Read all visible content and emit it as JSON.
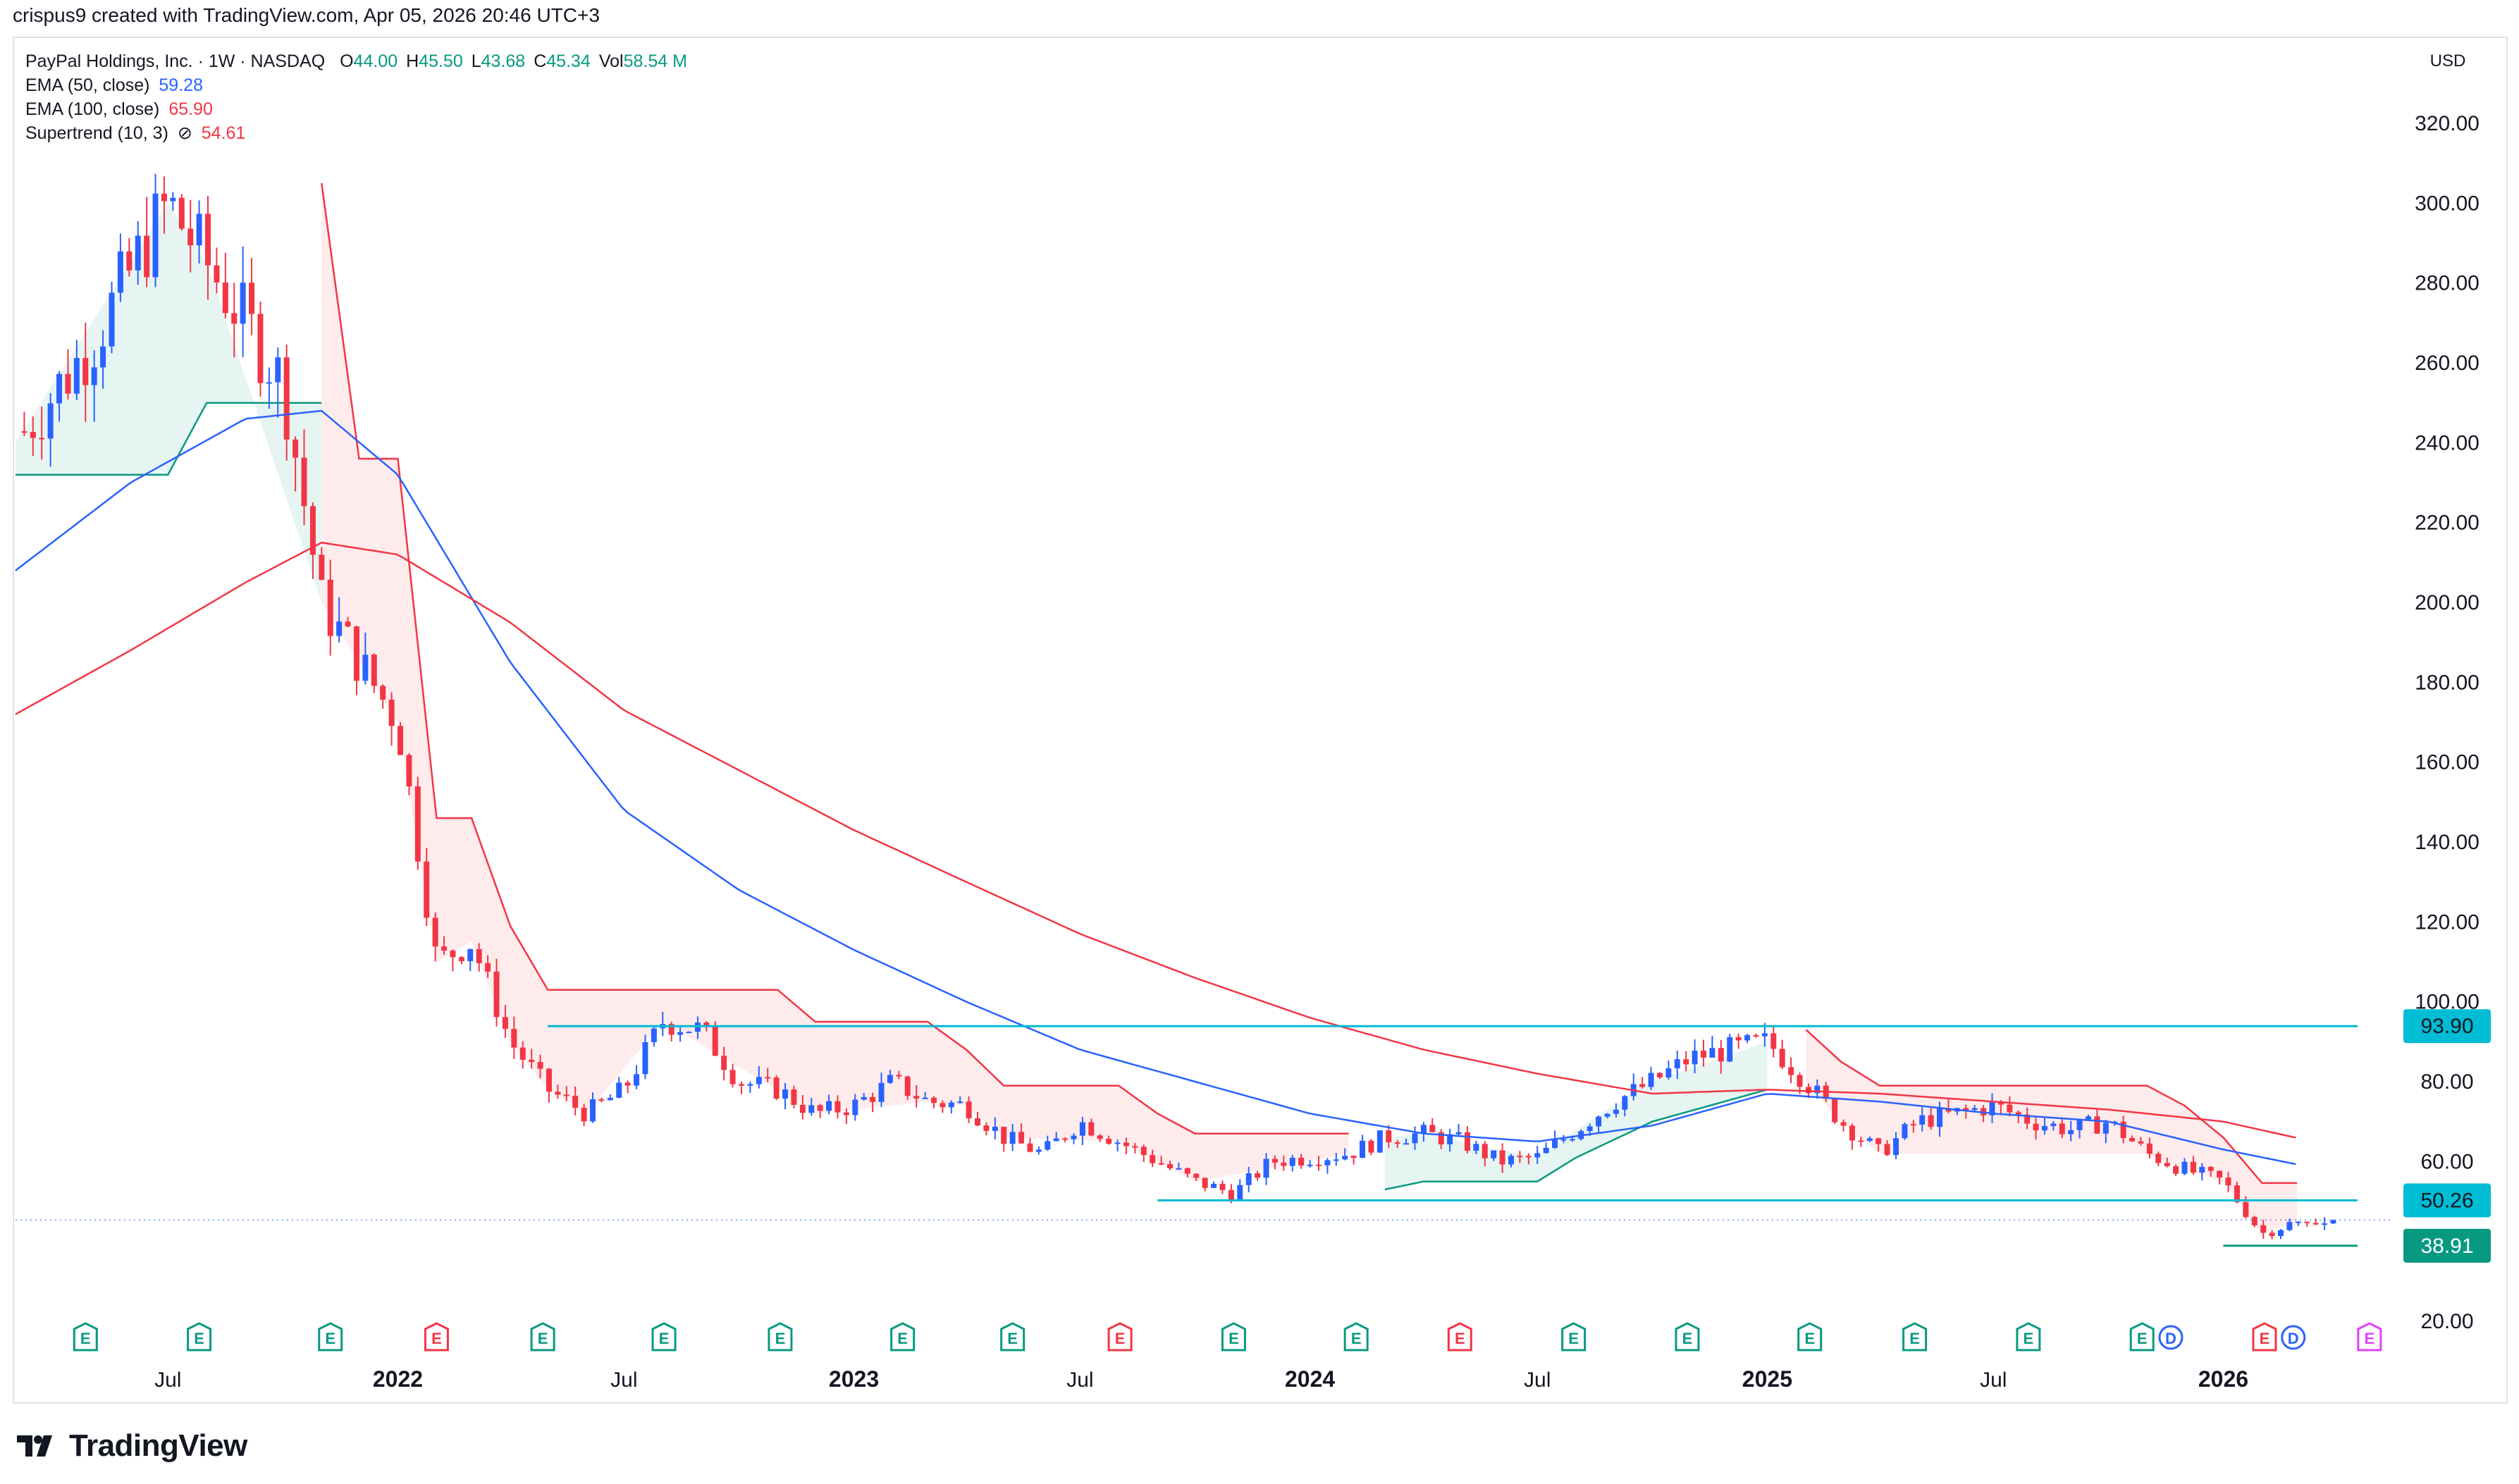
{
  "header": {
    "text": "crispus9 created with TradingView.com, Apr 05, 2026 20:46 UTC+3"
  },
  "legend": {
    "symbol": "PayPal Holdings, Inc. · 1W · NASDAQ",
    "ohlcv": [
      {
        "k": "O",
        "v": "44.00"
      },
      {
        "k": "H",
        "v": "45.50"
      },
      {
        "k": "L",
        "v": "43.68"
      },
      {
        "k": "C",
        "v": "45.34"
      },
      {
        "k": "Vol",
        "v": "58.54 M"
      }
    ],
    "ema50": {
      "label": "EMA (50, close)",
      "value": "59.28",
      "color": "#2962ff"
    },
    "ema100": {
      "label": "EMA (100, close)",
      "value": "65.90",
      "color": "#f23645"
    },
    "supertrend": {
      "label": "Supertrend (10, 3)",
      "symbol": "⊘",
      "value": "54.61",
      "color": "#f23645"
    }
  },
  "currency": "USD",
  "logo": {
    "text": "TradingView"
  },
  "colors": {
    "up": "#2962ff",
    "down": "#f23645",
    "value_green": "#089981",
    "level": "#00bcd4",
    "support_low": "#089981"
  },
  "chart_data": {
    "type": "candlestick",
    "ylim": [
      20,
      330
    ],
    "yticks": [
      "20.00",
      "60.00",
      "80.00",
      "100.00",
      "120.00",
      "140.00",
      "160.00",
      "180.00",
      "200.00",
      "220.00",
      "240.00",
      "260.00",
      "280.00",
      "300.00",
      "320.00"
    ],
    "xticks": [
      {
        "label": "Jul",
        "date": "2021-07"
      },
      {
        "label": "2022",
        "date": "2022-01"
      },
      {
        "label": "Jul",
        "date": "2022-07"
      },
      {
        "label": "2023",
        "date": "2023-01"
      },
      {
        "label": "Jul",
        "date": "2023-07"
      },
      {
        "label": "2024",
        "date": "2024-01"
      },
      {
        "label": "Jul",
        "date": "2024-07"
      },
      {
        "label": "2025",
        "date": "2025-01"
      },
      {
        "label": "Jul",
        "date": "2025-07"
      },
      {
        "label": "2026",
        "date": "2026-01"
      }
    ],
    "anchors": [
      [
        "2021-03",
        240
      ],
      [
        "2021-05",
        265
      ],
      [
        "2021-07",
        300
      ],
      [
        "2021-08",
        285
      ],
      [
        "2021-09",
        270
      ],
      [
        "2021-10",
        255
      ],
      [
        "2021-11",
        200
      ],
      [
        "2021-12",
        185
      ],
      [
        "2022-01",
        170
      ],
      [
        "2022-02",
        110
      ],
      [
        "2022-03",
        115
      ],
      [
        "2022-04",
        90
      ],
      [
        "2022-05",
        78
      ],
      [
        "2022-06",
        72
      ],
      [
        "2022-07",
        78
      ],
      [
        "2022-08",
        95
      ],
      [
        "2022-09",
        93
      ],
      [
        "2022-10",
        80
      ],
      [
        "2022-11",
        78
      ],
      [
        "2022-12",
        72
      ],
      [
        "2023-01",
        74
      ],
      [
        "2023-02",
        80
      ],
      [
        "2023-03",
        75
      ],
      [
        "2023-04",
        74
      ],
      [
        "2023-05",
        66
      ],
      [
        "2023-06",
        62
      ],
      [
        "2023-07",
        70
      ],
      [
        "2023-08",
        65
      ],
      [
        "2023-09",
        60
      ],
      [
        "2023-10",
        55
      ],
      [
        "2023-11",
        52
      ],
      [
        "2023-12",
        60
      ],
      [
        "2024-01",
        61
      ],
      [
        "2024-02",
        62
      ],
      [
        "2024-03",
        66
      ],
      [
        "2024-04",
        67
      ],
      [
        "2024-05",
        65
      ],
      [
        "2024-06",
        60
      ],
      [
        "2024-07",
        61
      ],
      [
        "2024-08",
        68
      ],
      [
        "2024-09",
        75
      ],
      [
        "2024-10",
        80
      ],
      [
        "2024-11",
        86
      ],
      [
        "2024-12",
        88
      ],
      [
        "2025-01",
        90
      ],
      [
        "2025-02",
        80
      ],
      [
        "2025-03",
        70
      ],
      [
        "2025-04",
        62
      ],
      [
        "2025-05",
        70
      ],
      [
        "2025-06",
        72
      ],
      [
        "2025-07",
        74
      ],
      [
        "2025-08",
        70
      ],
      [
        "2025-09",
        68
      ],
      [
        "2025-10",
        70
      ],
      [
        "2025-11",
        62
      ],
      [
        "2025-12",
        58
      ],
      [
        "2026-01",
        55
      ],
      [
        "2026-02",
        42
      ],
      [
        "2026-03",
        45
      ]
    ],
    "ema50": [
      [
        "2021-03",
        208
      ],
      [
        "2021-06",
        230
      ],
      [
        "2021-09",
        246
      ],
      [
        "2021-11",
        248
      ],
      [
        "2022-01",
        232
      ],
      [
        "2022-04",
        185
      ],
      [
        "2022-07",
        148
      ],
      [
        "2022-10",
        128
      ],
      [
        "2023-01",
        113
      ],
      [
        "2023-04",
        100
      ],
      [
        "2023-07",
        88
      ],
      [
        "2023-10",
        80
      ],
      [
        "2024-01",
        72
      ],
      [
        "2024-04",
        67
      ],
      [
        "2024-07",
        65
      ],
      [
        "2024-10",
        69
      ],
      [
        "2025-01",
        77
      ],
      [
        "2025-04",
        75
      ],
      [
        "2025-07",
        72
      ],
      [
        "2025-10",
        70
      ],
      [
        "2026-01",
        63
      ],
      [
        "2026-03",
        59.28
      ]
    ],
    "ema100": [
      [
        "2021-03",
        172
      ],
      [
        "2021-06",
        188
      ],
      [
        "2021-09",
        205
      ],
      [
        "2021-11",
        215
      ],
      [
        "2022-01",
        212
      ],
      [
        "2022-04",
        195
      ],
      [
        "2022-07",
        173
      ],
      [
        "2022-10",
        158
      ],
      [
        "2023-01",
        143
      ],
      [
        "2023-04",
        130
      ],
      [
        "2023-07",
        117
      ],
      [
        "2023-10",
        106
      ],
      [
        "2024-01",
        96
      ],
      [
        "2024-04",
        88
      ],
      [
        "2024-07",
        82
      ],
      [
        "2024-10",
        77
      ],
      [
        "2025-01",
        78
      ],
      [
        "2025-04",
        77
      ],
      [
        "2025-07",
        75
      ],
      [
        "2025-10",
        73
      ],
      [
        "2026-01",
        70
      ],
      [
        "2026-03",
        65.9
      ]
    ],
    "supertrend_up": [
      [
        "2021-03",
        232
      ],
      [
        "2021-07",
        232
      ],
      [
        "2021-08",
        250
      ],
      [
        "2021-11",
        250
      ]
    ],
    "supertrend_down": [
      [
        "2021-11",
        305
      ],
      [
        "2021-12",
        236
      ],
      [
        "2022-01",
        236
      ],
      [
        "2022-02",
        146
      ],
      [
        "2022-03",
        146
      ],
      [
        "2022-04",
        119
      ],
      [
        "2022-05",
        103
      ],
      [
        "2022-06",
        103
      ],
      [
        "2022-08",
        103
      ],
      [
        "2022-11",
        103
      ],
      [
        "2022-12",
        95
      ],
      [
        "2023-03",
        95
      ],
      [
        "2023-04",
        88
      ],
      [
        "2023-05",
        79
      ],
      [
        "2023-08",
        79
      ],
      [
        "2023-09",
        72
      ],
      [
        "2023-10",
        67
      ],
      [
        "2024-02",
        67
      ]
    ],
    "supertrend_up2": [
      [
        "2024-03",
        53
      ],
      [
        "2024-04",
        55
      ],
      [
        "2024-07",
        55
      ],
      [
        "2024-08",
        61
      ],
      [
        "2024-10",
        70
      ],
      [
        "2025-01",
        78
      ]
    ],
    "supertrend_down2": [
      [
        "2025-02",
        93
      ],
      [
        "2025-03",
        85
      ],
      [
        "2025-04",
        79
      ],
      [
        "2025-11",
        79
      ],
      [
        "2025-12",
        74
      ],
      [
        "2026-01",
        66
      ],
      [
        "2026-02",
        54.61
      ],
      [
        "2026-03",
        54.61
      ]
    ],
    "levels": [
      {
        "value": 93.9,
        "label": "93.90",
        "from": "2022-05"
      },
      {
        "value": 50.26,
        "label": "50.26",
        "from": "2023-09"
      },
      {
        "value": 38.91,
        "label": "38.91",
        "from": "2026-01"
      }
    ],
    "last_price": 45.34,
    "events": [
      {
        "date": "2021-04-26",
        "type": "E"
      },
      {
        "date": "2021-07-26",
        "type": "E"
      },
      {
        "date": "2021-11-08",
        "type": "E"
      },
      {
        "date": "2022-02-01",
        "type": "E",
        "negative": true
      },
      {
        "date": "2022-04-27",
        "type": "E"
      },
      {
        "date": "2022-08-02",
        "type": "E"
      },
      {
        "date": "2022-11-03",
        "type": "E"
      },
      {
        "date": "2023-02-09",
        "type": "E"
      },
      {
        "date": "2023-05-08",
        "type": "E"
      },
      {
        "date": "2023-08-02",
        "type": "E",
        "negative": true
      },
      {
        "date": "2023-11-01",
        "type": "E"
      },
      {
        "date": "2024-02-07",
        "type": "E"
      },
      {
        "date": "2024-04-30",
        "type": "E",
        "negative": true
      },
      {
        "date": "2024-07-30",
        "type": "E"
      },
      {
        "date": "2024-10-29",
        "type": "E"
      },
      {
        "date": "2025-02-04",
        "type": "E"
      },
      {
        "date": "2025-04-29",
        "type": "E"
      },
      {
        "date": "2025-07-29",
        "type": "E"
      },
      {
        "date": "2025-10-28",
        "type": "E"
      },
      {
        "date": "2025-11-20",
        "type": "D"
      },
      {
        "date": "2026-02-03",
        "type": "E",
        "negative": true
      },
      {
        "date": "2026-02-26",
        "type": "D"
      },
      {
        "date": "2026-04-28",
        "type": "E",
        "future": true
      }
    ]
  }
}
